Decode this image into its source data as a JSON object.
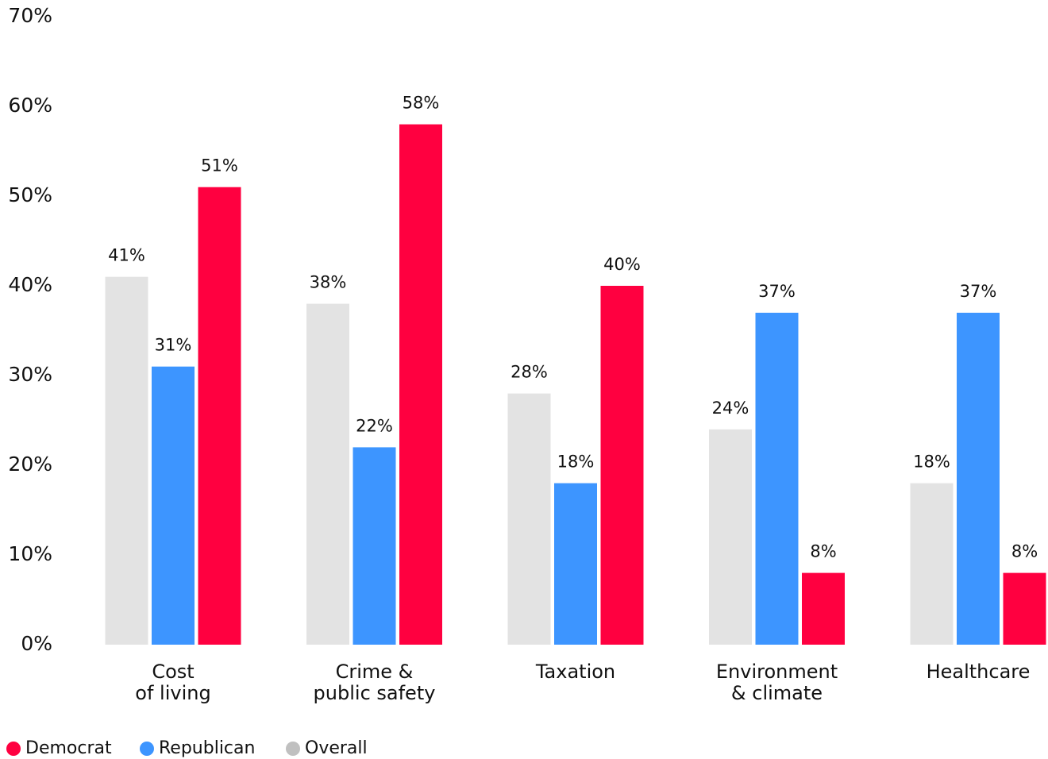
{
  "chart_data": {
    "type": "bar",
    "categories": [
      [
        "Cost",
        "of living"
      ],
      [
        "Crime &",
        "public safety"
      ],
      [
        "Taxation"
      ],
      [
        "Environment",
        "& climate"
      ],
      [
        "Healthcare"
      ]
    ],
    "series": [
      {
        "name": "Democrat",
        "color": "#ff0040",
        "values": [
          51,
          58,
          40,
          8,
          8
        ],
        "value_labels": [
          "51%",
          "58%",
          "40%",
          "8%",
          "8%"
        ]
      },
      {
        "name": "Republican",
        "color": "#3d95ff",
        "values": [
          31,
          22,
          18,
          37,
          37
        ],
        "value_labels": [
          "31%",
          "22%",
          "18%",
          "37%",
          "37%"
        ]
      },
      {
        "name": "Overall",
        "color": "#e3e3e3",
        "values": [
          41,
          38,
          28,
          24,
          18
        ],
        "value_labels": [
          "41%",
          "38%",
          "28%",
          "24%",
          "18%"
        ]
      }
    ],
    "ylim": [
      0,
      70
    ],
    "yticks": [
      {
        "value": 0,
        "label": "0%"
      },
      {
        "value": 10,
        "label": "10%"
      },
      {
        "value": 20,
        "label": "20%"
      },
      {
        "value": 30,
        "label": "30%"
      },
      {
        "value": 40,
        "label": "40%"
      },
      {
        "value": 50,
        "label": "50%"
      },
      {
        "value": 60,
        "label": "60%"
      },
      {
        "value": 70,
        "label": "70%"
      }
    ],
    "grid": false,
    "legend": "bottom-left"
  }
}
